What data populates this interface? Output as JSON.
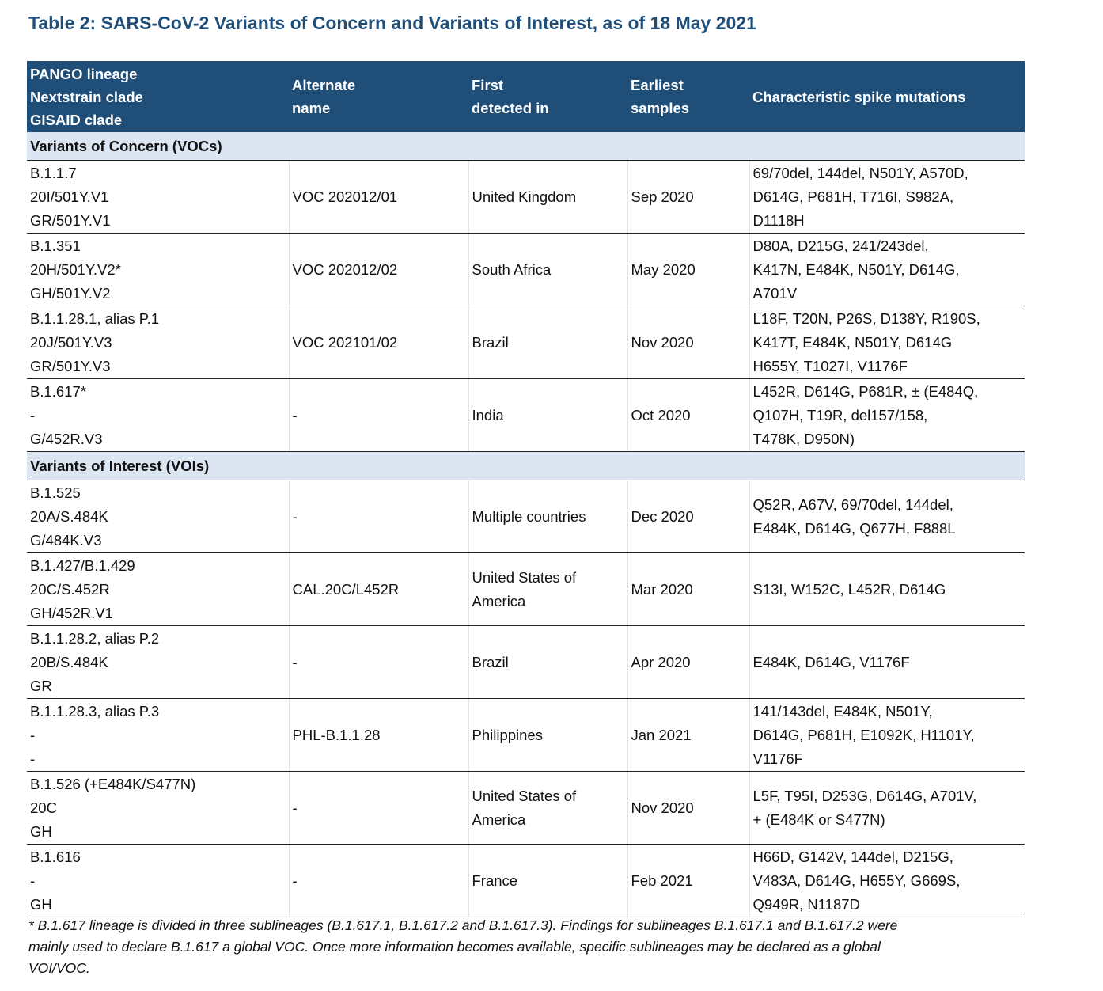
{
  "title": "Table 2: SARS-CoV-2 Variants of Concern and Variants of Interest, as of 18 May 2021",
  "table": {
    "header": [
      [
        "PANGO lineage",
        "Nextstrain clade",
        "GISAID clade"
      ],
      [
        "Alternate",
        "name"
      ],
      [
        "First",
        "detected in"
      ],
      [
        "Earliest",
        "samples"
      ],
      [
        "Characteristic spike mutations"
      ]
    ],
    "sections": [
      {
        "label": "Variants of Concern (VOCs)",
        "rows": [
          {
            "lineage": [
              "B.1.1.7",
              "20I/501Y.V1",
              "GR/501Y.V1"
            ],
            "alternate_name": "VOC 202012/01",
            "first_detected": [
              "United Kingdom"
            ],
            "earliest": "Sep 2020",
            "mutations": [
              "69/70del, 144del, N501Y, A570D,",
              "D614G, P681H, T716I, S982A,",
              "D1118H"
            ]
          },
          {
            "lineage": [
              "B.1.351",
              "20H/501Y.V2*",
              "GH/501Y.V2"
            ],
            "alternate_name": "VOC 202012/02",
            "first_detected": [
              "South Africa"
            ],
            "earliest": "May 2020",
            "mutations": [
              "D80A, D215G, 241/243del,",
              "K417N, E484K, N501Y, D614G,",
              "A701V"
            ]
          },
          {
            "lineage": [
              "B.1.1.28.1, alias P.1",
              "20J/501Y.V3",
              "GR/501Y.V3"
            ],
            "alternate_name": "VOC 202101/02",
            "first_detected": [
              "Brazil"
            ],
            "earliest": "Nov 2020",
            "mutations": [
              "L18F, T20N, P26S, D138Y, R190S,",
              "K417T, E484K, N501Y, D614G",
              "H655Y, T1027I, V1176F"
            ]
          },
          {
            "lineage": [
              "B.1.617*",
              "-",
              "G/452R.V3"
            ],
            "alternate_name": "-",
            "first_detected": [
              "India"
            ],
            "earliest": "Oct 2020",
            "mutations": [
              "L452R, D614G, P681R, ± (E484Q,",
              "Q107H, T19R, del157/158,",
              "T478K, D950N)"
            ]
          }
        ]
      },
      {
        "label": "Variants of Interest (VOIs)",
        "rows": [
          {
            "lineage": [
              "B.1.525",
              "20A/S.484K",
              "G/484K.V3"
            ],
            "alternate_name": "-",
            "first_detected": [
              "Multiple countries"
            ],
            "earliest": "Dec 2020",
            "mutations": [
              "Q52R, A67V, 69/70del, 144del,",
              "E484K, D614G, Q677H, F888L"
            ]
          },
          {
            "lineage": [
              "B.1.427/B.1.429",
              "20C/S.452R",
              "GH/452R.V1"
            ],
            "alternate_name": "CAL.20C/L452R",
            "first_detected": [
              "United States of",
              "America"
            ],
            "earliest": "Mar 2020",
            "mutations": [
              "S13I, W152C, L452R, D614G"
            ]
          },
          {
            "lineage": [
              "B.1.1.28.2, alias P.2",
              "20B/S.484K",
              "GR"
            ],
            "alternate_name": "-",
            "first_detected": [
              "Brazil"
            ],
            "earliest": "Apr 2020",
            "mutations": [
              "E484K, D614G, V1176F"
            ]
          },
          {
            "lineage": [
              "B.1.1.28.3, alias P.3",
              "-",
              "-"
            ],
            "alternate_name": "PHL-B.1.1.28",
            "first_detected": [
              "Philippines"
            ],
            "earliest": "Jan 2021",
            "mutations": [
              "141/143del, E484K, N501Y,",
              "D614G, P681H, E1092K, H1101Y,",
              "V1176F"
            ]
          },
          {
            "lineage": [
              "B.1.526 (+E484K/S477N)",
              "20C",
              "GH"
            ],
            "alternate_name": "-",
            "first_detected": [
              "United States of",
              "America"
            ],
            "earliest": "Nov 2020",
            "mutations": [
              "L5F, T95I, D253G, D614G, A701V,",
              "+ (E484K or S477N)"
            ]
          },
          {
            "lineage": [
              "B.1.616",
              "-",
              "GH"
            ],
            "alternate_name": "-",
            "first_detected": [
              "France"
            ],
            "earliest": "Feb 2021",
            "mutations": [
              "H66D, G142V, 144del, D215G,",
              "V483A, D614G, H655Y, G669S,",
              "Q949R, N1187D"
            ]
          }
        ]
      }
    ]
  },
  "footnote": [
    "* B.1.617 lineage is divided in three sublineages (B.1.617.1, B.1.617.2 and B.1.617.3). Findings for sublineages B.1.617.1 and B.1.617.2 were",
    "mainly used to declare B.1.617 a global VOC. Once more information becomes available, specific sublineages may be declared as a global",
    "VOI/VOC."
  ]
}
